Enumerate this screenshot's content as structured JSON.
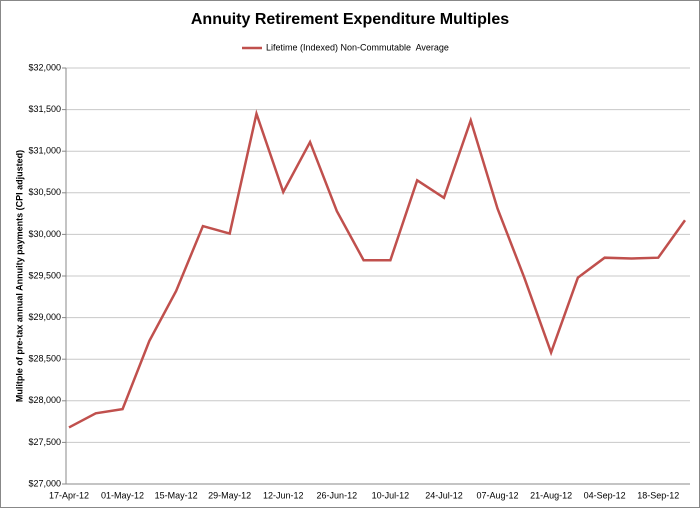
{
  "chart_data": {
    "type": "line",
    "title": "Annuity Retirement Expenditure Multiples",
    "y_label": "Mulitple of pre-tax annual Annuity payments (CPI adjusted)",
    "categories": [
      "17-Apr-12",
      null,
      "01-May-12",
      null,
      "15-May-12",
      null,
      "29-May-12",
      null,
      "12-Jun-12",
      null,
      "26-Jun-12",
      null,
      "10-Jul-12",
      null,
      "24-Jul-12",
      null,
      "07-Aug-12",
      null,
      "21-Aug-12",
      null,
      "04-Sep-12",
      null,
      "18-Sep-12",
      null
    ],
    "series": [
      {
        "name": "Lifetime (Indexed) Non-Commutable  Average",
        "color": "#c0504d",
        "values": [
          27680,
          27850,
          27900,
          28720,
          29320,
          30100,
          30010,
          31450,
          30510,
          31110,
          30280,
          29690,
          29690,
          30650,
          30440,
          31370,
          30310,
          29480,
          28580,
          29480,
          29720,
          29710,
          29720,
          30170
        ]
      }
    ],
    "ylim": [
      27000,
      32000
    ],
    "yticks": [
      {
        "value": 27000,
        "label": "$27,000"
      },
      {
        "value": 27500,
        "label": "$27,500"
      },
      {
        "value": 28000,
        "label": "$28,000"
      },
      {
        "value": 28500,
        "label": "$28,500"
      },
      {
        "value": 29000,
        "label": "$29,000"
      },
      {
        "value": 29500,
        "label": "$29,500"
      },
      {
        "value": 30000,
        "label": "$30,000"
      },
      {
        "value": 30500,
        "label": "$30,500"
      },
      {
        "value": 31000,
        "label": "$31,000"
      },
      {
        "value": 31500,
        "label": "$31,500"
      },
      {
        "value": 32000,
        "label": "$32,000"
      }
    ],
    "grid": true,
    "legend": "top"
  }
}
